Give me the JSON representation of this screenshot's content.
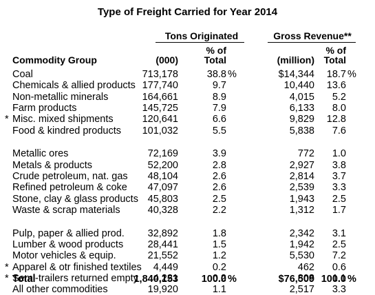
{
  "title": "Type of Freight Carried for Year 2014",
  "groups": {
    "tons": "Tons Originated",
    "revenue": "Gross Revenue**"
  },
  "headers": {
    "commodity": "Commodity Group",
    "tons": "(000)",
    "tons_pct_1": "% of",
    "tons_pct_2": "Total",
    "revenue": "(million)",
    "rev_pct_1": "% of",
    "rev_pct_2": "Total"
  },
  "rows": [
    {
      "star": "",
      "name": "Coal",
      "tons": "713,178",
      "tons_pct": "38.8",
      "tons_sfx": "%",
      "revenue": "$14,344",
      "rev_pct": "18.7",
      "rev_sfx": "%"
    },
    {
      "star": "",
      "name": "Chemicals & allied products",
      "tons": "177,740",
      "tons_pct": "9.7",
      "tons_sfx": "",
      "revenue": "10,440",
      "rev_pct": "13.6",
      "rev_sfx": ""
    },
    {
      "star": "",
      "name": "Non-metallic minerals",
      "tons": "164,661",
      "tons_pct": "8.9",
      "tons_sfx": "",
      "revenue": "4,015",
      "rev_pct": "5.2",
      "rev_sfx": ""
    },
    {
      "star": "",
      "name": "Farm products",
      "tons": "145,725",
      "tons_pct": "7.9",
      "tons_sfx": "",
      "revenue": "6,133",
      "rev_pct": "8.0",
      "rev_sfx": ""
    },
    {
      "star": "*",
      "name": "Misc. mixed shipments",
      "tons": "120,641",
      "tons_pct": "6.6",
      "tons_sfx": "",
      "revenue": "9,829",
      "rev_pct": "12.8",
      "rev_sfx": ""
    },
    {
      "star": "",
      "name": "Food & kindred products",
      "tons": "101,032",
      "tons_pct": "5.5",
      "tons_sfx": "",
      "revenue": "5,838",
      "rev_pct": "7.6",
      "rev_sfx": ""
    },
    {
      "star": "",
      "name": "Metallic ores",
      "tons": "72,169",
      "tons_pct": "3.9",
      "tons_sfx": "",
      "revenue": "772",
      "rev_pct": "1.0",
      "rev_sfx": ""
    },
    {
      "star": "",
      "name": "Metals & products",
      "tons": "52,200",
      "tons_pct": "2.8",
      "tons_sfx": "",
      "revenue": "2,927",
      "rev_pct": "3.8",
      "rev_sfx": ""
    },
    {
      "star": "",
      "name": "Crude petroleum, nat. gas",
      "tons": "48,104",
      "tons_pct": "2.6",
      "tons_sfx": "",
      "revenue": "2,814",
      "rev_pct": "3.7",
      "rev_sfx": ""
    },
    {
      "star": "",
      "name": "Refined petroleum & coke",
      "tons": "47,097",
      "tons_pct": "2.6",
      "tons_sfx": "",
      "revenue": "2,539",
      "rev_pct": "3.3",
      "rev_sfx": ""
    },
    {
      "star": "",
      "name": "Stone, clay & glass products",
      "tons": "45,803",
      "tons_pct": "2.5",
      "tons_sfx": "",
      "revenue": "1,943",
      "rev_pct": "2.5",
      "rev_sfx": ""
    },
    {
      "star": "",
      "name": "Waste & scrap materials",
      "tons": "40,328",
      "tons_pct": "2.2",
      "tons_sfx": "",
      "revenue": "1,312",
      "rev_pct": "1.7",
      "rev_sfx": ""
    },
    {
      "star": "",
      "name": "Pulp, paper & allied prod.",
      "tons": "32,892",
      "tons_pct": "1.8",
      "tons_sfx": "",
      "revenue": "2,342",
      "rev_pct": "3.1",
      "rev_sfx": ""
    },
    {
      "star": "",
      "name": "Lumber & wood products",
      "tons": "28,441",
      "tons_pct": "1.5",
      "tons_sfx": "",
      "revenue": "1,942",
      "rev_pct": "2.5",
      "rev_sfx": ""
    },
    {
      "star": "",
      "name": "Motor vehicles & equip.",
      "tons": "21,552",
      "tons_pct": "1.2",
      "tons_sfx": "",
      "revenue": "5,530",
      "rev_pct": "7.2",
      "rev_sfx": ""
    },
    {
      "star": "*",
      "name": "Apparel & otr finished textiles",
      "tons": "4,449",
      "tons_pct": "0.2",
      "tons_sfx": "",
      "revenue": "462",
      "rev_pct": "0.6",
      "rev_sfx": ""
    },
    {
      "star": "*",
      "name": "Semi-trailers returned empty",
      "tons": "4,221",
      "tons_pct": "0.2",
      "tons_sfx": "",
      "revenue": "808",
      "rev_pct": "1.1",
      "rev_sfx": ""
    },
    {
      "star": "",
      "name": "All other commodities",
      "tons": "19,920",
      "tons_pct": "1.1",
      "tons_sfx": "",
      "revenue": "2,517",
      "rev_pct": "3.3",
      "rev_sfx": ""
    }
  ],
  "total": {
    "name": "Total",
    "tons": "1,840,153",
    "tons_pct": "100.0",
    "tons_sfx": "%",
    "revenue": "$76,509",
    "rev_pct": "100.0",
    "rev_sfx": "%"
  }
}
